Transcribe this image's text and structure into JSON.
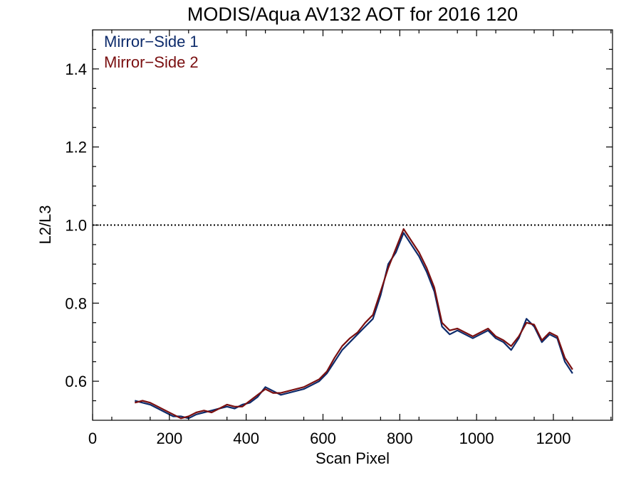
{
  "chart_data": {
    "type": "line",
    "title": "MODIS/Aqua AV132 AOT for 2016 120",
    "xlabel": "Scan Pixel",
    "ylabel": "L2/L3",
    "xlim": [
      0,
      1354
    ],
    "ylim": [
      0.5,
      1.5
    ],
    "xticks": [
      0,
      200,
      400,
      600,
      800,
      1000,
      1200
    ],
    "xtick_labels": [
      "0",
      "200",
      "400",
      "600",
      "800",
      "1000",
      "1200"
    ],
    "yticks": [
      0.6,
      0.8,
      1.0,
      1.2,
      1.4
    ],
    "ytick_labels": [
      "0.6",
      "0.8",
      "1.0",
      "1.2",
      "1.4"
    ],
    "reference_line": {
      "y": 1.0,
      "style": "dotted"
    },
    "grid": false,
    "legend_position": "top-left",
    "legend": [
      {
        "label": "Mirror−Side 1",
        "color": "#0d2b6b"
      },
      {
        "label": "Mirror−Side 2",
        "color": "#7a0f10"
      }
    ],
    "x": [
      110,
      130,
      150,
      170,
      190,
      210,
      230,
      250,
      270,
      290,
      310,
      330,
      350,
      370,
      390,
      410,
      430,
      450,
      470,
      490,
      510,
      530,
      550,
      570,
      590,
      610,
      630,
      650,
      670,
      690,
      710,
      730,
      750,
      770,
      790,
      810,
      830,
      850,
      870,
      890,
      910,
      930,
      950,
      970,
      990,
      1010,
      1030,
      1050,
      1070,
      1090,
      1110,
      1130,
      1150,
      1170,
      1190,
      1210,
      1230,
      1250
    ],
    "series": [
      {
        "name": "Mirror−Side 1",
        "color": "#0d2b6b",
        "values": [
          0.55,
          0.545,
          0.54,
          0.53,
          0.52,
          0.51,
          0.51,
          0.505,
          0.515,
          0.52,
          0.525,
          0.53,
          0.535,
          0.53,
          0.54,
          0.545,
          0.56,
          0.585,
          0.575,
          0.565,
          0.57,
          0.575,
          0.58,
          0.59,
          0.6,
          0.62,
          0.65,
          0.68,
          0.7,
          0.72,
          0.74,
          0.76,
          0.82,
          0.9,
          0.93,
          0.98,
          0.95,
          0.92,
          0.88,
          0.83,
          0.74,
          0.72,
          0.73,
          0.72,
          0.71,
          0.72,
          0.73,
          0.71,
          0.7,
          0.68,
          0.71,
          0.76,
          0.74,
          0.7,
          0.72,
          0.71,
          0.65,
          0.62
        ]
      },
      {
        "name": "Mirror−Side 2",
        "color": "#7a0f10",
        "values": [
          0.545,
          0.55,
          0.545,
          0.535,
          0.525,
          0.515,
          0.505,
          0.51,
          0.52,
          0.525,
          0.52,
          0.53,
          0.54,
          0.535,
          0.535,
          0.55,
          0.565,
          0.58,
          0.57,
          0.57,
          0.575,
          0.58,
          0.585,
          0.595,
          0.605,
          0.625,
          0.66,
          0.69,
          0.71,
          0.725,
          0.75,
          0.77,
          0.83,
          0.89,
          0.94,
          0.99,
          0.96,
          0.93,
          0.89,
          0.84,
          0.75,
          0.73,
          0.735,
          0.725,
          0.715,
          0.725,
          0.735,
          0.715,
          0.705,
          0.69,
          0.715,
          0.75,
          0.745,
          0.705,
          0.725,
          0.715,
          0.66,
          0.63
        ]
      }
    ]
  }
}
